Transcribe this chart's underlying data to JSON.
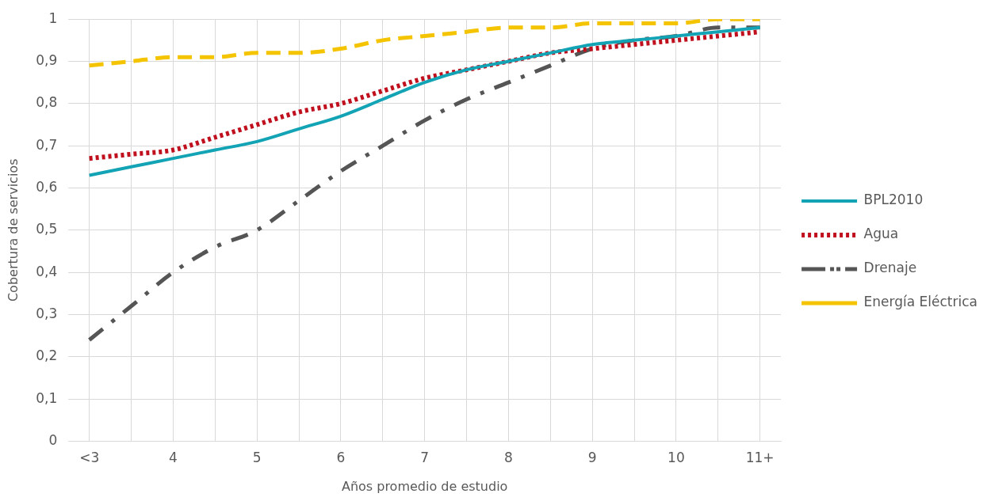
{
  "chart_data": {
    "type": "line",
    "xlabel": "Años promedio de estudio",
    "ylabel": "Cobertura de servicios",
    "categories": [
      "<3",
      null,
      "4",
      null,
      "5",
      null,
      "6",
      null,
      "7",
      null,
      "8",
      null,
      "9",
      null,
      "10",
      null,
      "11+"
    ],
    "ylim": [
      0,
      1
    ],
    "yticks": [
      0,
      {
        "value": 0.1,
        "label": "0,1"
      },
      {
        "value": 0.2,
        "label": "0,2"
      },
      {
        "value": 0.3,
        "label": "0,3"
      },
      {
        "value": 0.4,
        "label": "0,4"
      },
      {
        "value": 0.5,
        "label": "0,5"
      },
      {
        "value": 0.6,
        "label": "0,6"
      },
      {
        "value": 0.7,
        "label": "0,7"
      },
      {
        "value": 0.8,
        "label": "0,8"
      },
      {
        "value": 0.9,
        "label": "0,9"
      },
      1
    ],
    "grid": true,
    "legend": "right",
    "marker": "none",
    "series": [
      {
        "name": "BPL2010",
        "color": "#12a3b5",
        "line_style": "solid",
        "values": [
          0.63,
          0.65,
          0.67,
          0.69,
          0.71,
          0.74,
          0.77,
          0.81,
          0.85,
          0.88,
          0.9,
          0.92,
          0.94,
          0.95,
          0.96,
          0.97,
          0.98
        ]
      },
      {
        "name": "Agua",
        "color": "#c0101e",
        "line_style": "dotted",
        "values": [
          0.67,
          0.68,
          0.69,
          0.72,
          0.75,
          0.78,
          0.8,
          0.83,
          0.86,
          0.88,
          0.9,
          0.92,
          0.93,
          0.94,
          0.95,
          0.96,
          0.97
        ]
      },
      {
        "name": "Drenaje",
        "color": "#555555",
        "line_style": "dashdot",
        "values": [
          0.24,
          0.32,
          0.4,
          0.46,
          0.5,
          0.57,
          0.64,
          0.7,
          0.76,
          0.81,
          0.85,
          0.89,
          0.93,
          0.95,
          0.96,
          0.98,
          0.98
        ]
      },
      {
        "name": "Energía Eléctrica",
        "color": "#f5c400",
        "line_style": "dashed",
        "values": [
          0.89,
          0.9,
          0.91,
          0.91,
          0.92,
          0.92,
          0.93,
          0.95,
          0.96,
          0.97,
          0.98,
          0.98,
          0.99,
          0.99,
          0.99,
          1.0,
          1.0
        ]
      }
    ]
  }
}
